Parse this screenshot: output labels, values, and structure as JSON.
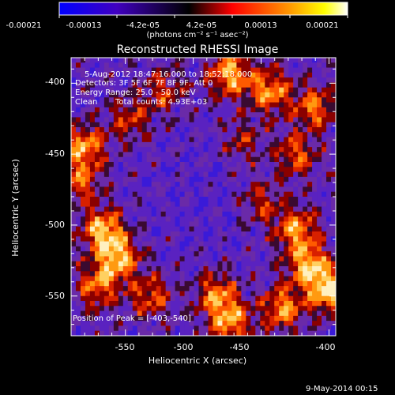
{
  "colorbar": {
    "tick_labels": [
      "-0.00021",
      "-0.00013",
      "-4.2e-05",
      "4.2e-05",
      "0.00013",
      "0.00021"
    ],
    "units_label": "(photons cm⁻² s⁻¹ asec⁻²)",
    "colors": [
      "#0000ff",
      "#000000",
      "#ff0000",
      "#ffff00",
      "#ffffff"
    ]
  },
  "title": "Reconstructed RHESSI Image",
  "annotations": {
    "time_range": "5-Aug-2012 18:47:16.000 to 18:52:18.000",
    "detectors": "Detectors: 3F 5F 6F 7F 8F 9F, Att 0",
    "energy_range": "Energy Range: 25.0 - 50.0 keV",
    "algorithm": "Clean",
    "total_counts": "Total counts: 4.93E+03"
  },
  "peak_label": "Position of Peak = [-403,-540]",
  "xaxis": {
    "label": "Heliocentric X (arcsec)",
    "ticks": [
      -550,
      -500,
      -450,
      -400
    ],
    "tick_labels": [
      "-550",
      "-500",
      "-450",
      "-400"
    ],
    "range": [
      -590,
      -395
    ]
  },
  "yaxis": {
    "label": "Heliocentric Y (arcsec)",
    "ticks": [
      -400,
      -450,
      -500,
      -550
    ],
    "tick_labels": [
      "-400",
      "-450",
      "-500",
      "-550"
    ],
    "range": [
      -578,
      -382
    ]
  },
  "footer_date": "9-May-2014 00:15"
}
